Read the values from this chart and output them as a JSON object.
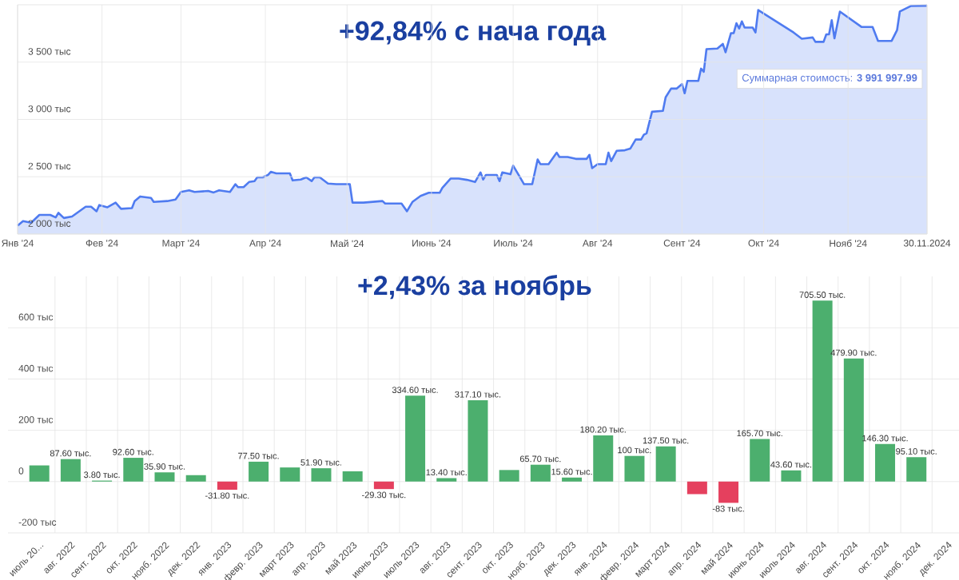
{
  "chart_data": [
    {
      "type": "area",
      "title": "+92,84% с нача года",
      "x": [
        "2024-01-01",
        "2024-01-03",
        "2024-01-06",
        "2024-01-09",
        "2024-01-13",
        "2024-01-15",
        "2024-01-16",
        "2024-01-18",
        "2024-01-21",
        "2024-01-26",
        "2024-01-28",
        "2024-01-30",
        "2024-01-31",
        "2024-02-03",
        "2024-02-06",
        "2024-02-08",
        "2024-02-12",
        "2024-02-13",
        "2024-02-15",
        "2024-02-19",
        "2024-02-20",
        "2024-02-25",
        "2024-02-28",
        "2024-03-01",
        "2024-03-04",
        "2024-03-06",
        "2024-03-11",
        "2024-03-13",
        "2024-03-15",
        "2024-03-19",
        "2024-03-21",
        "2024-03-22",
        "2024-03-24",
        "2024-03-26",
        "2024-03-28",
        "2024-03-29",
        "2024-03-31",
        "2024-04-02",
        "2024-04-03",
        "2024-04-05",
        "2024-04-10",
        "2024-04-11",
        "2024-04-14",
        "2024-04-16",
        "2024-04-18",
        "2024-04-19",
        "2024-04-21",
        "2024-04-24",
        "2024-04-27",
        "2024-05-02",
        "2024-05-03",
        "2024-05-07",
        "2024-05-14",
        "2024-05-15",
        "2024-05-21",
        "2024-05-23",
        "2024-05-25",
        "2024-05-28",
        "2024-05-31",
        "2024-06-04",
        "2024-06-05",
        "2024-06-08",
        "2024-06-11",
        "2024-06-14",
        "2024-06-17",
        "2024-06-19",
        "2024-06-20",
        "2024-06-21",
        "2024-06-25",
        "2024-06-26",
        "2024-06-27",
        "2024-06-30",
        "2024-07-01",
        "2024-07-03",
        "2024-07-05",
        "2024-07-08",
        "2024-07-10",
        "2024-07-11",
        "2024-07-14",
        "2024-07-17",
        "2024-07-18",
        "2024-07-21",
        "2024-07-24",
        "2024-07-28",
        "2024-07-29",
        "2024-07-30",
        "2024-08-01",
        "2024-08-04",
        "2024-08-05",
        "2024-08-06",
        "2024-08-08",
        "2024-08-11",
        "2024-08-13",
        "2024-08-14",
        "2024-08-15",
        "2024-08-17",
        "2024-08-18",
        "2024-08-19",
        "2024-08-21",
        "2024-08-25",
        "2024-08-26",
        "2024-08-28",
        "2024-08-30",
        "2024-09-01",
        "2024-09-02",
        "2024-09-03",
        "2024-09-07",
        "2024-09-08",
        "2024-09-09",
        "2024-09-10",
        "2024-09-14",
        "2024-09-16",
        "2024-09-17",
        "2024-09-19",
        "2024-09-20",
        "2024-09-21",
        "2024-09-22",
        "2024-09-23",
        "2024-09-24",
        "2024-09-27",
        "2024-09-28",
        "2024-09-29",
        "2024-10-12",
        "2024-10-15",
        "2024-10-19",
        "2024-10-20",
        "2024-10-23",
        "2024-10-24",
        "2024-10-25",
        "2024-10-26",
        "2024-10-27",
        "2024-10-29",
        "2024-11-06",
        "2024-11-10",
        "2024-11-12",
        "2024-11-17",
        "2024-11-19",
        "2024-11-20",
        "2024-11-24",
        "2024-11-30"
      ],
      "series": [
        {
          "color": "#4f7bf0",
          "values": [
            2073,
            2113,
            2099,
            2167,
            2167,
            2145,
            2185,
            2140,
            2153,
            2239,
            2239,
            2199,
            2253,
            2234,
            2274,
            2220,
            2226,
            2288,
            2328,
            2315,
            2280,
            2288,
            2301,
            2368,
            2382,
            2368,
            2376,
            2363,
            2382,
            2368,
            2435,
            2409,
            2409,
            2454,
            2462,
            2495,
            2495,
            2516,
            2543,
            2530,
            2530,
            2468,
            2476,
            2495,
            2462,
            2495,
            2495,
            2441,
            2435,
            2435,
            2274,
            2274,
            2288,
            2266,
            2266,
            2199,
            2280,
            2333,
            2360,
            2360,
            2403,
            2484,
            2484,
            2473,
            2454,
            2538,
            2476,
            2516,
            2516,
            2462,
            2538,
            2522,
            2597,
            2516,
            2435,
            2435,
            2651,
            2610,
            2610,
            2710,
            2672,
            2672,
            2656,
            2656,
            2691,
            2575,
            2610,
            2610,
            2710,
            2637,
            2726,
            2731,
            2745,
            2785,
            2825,
            2825,
            2866,
            2879,
            3067,
            3075,
            3193,
            3269,
            3269,
            3309,
            3228,
            3336,
            3336,
            3443,
            3416,
            3613,
            3618,
            3659,
            3586,
            3753,
            3753,
            3839,
            3793,
            3855,
            3801,
            3801,
            3758,
            3954,
            3758,
            3704,
            3715,
            3677,
            3677,
            3742,
            3742,
            3866,
            3707,
            3941,
            3806,
            3806,
            3685,
            3685,
            3780,
            3941,
            3989,
            3992
          ]
        }
      ],
      "xlim": [
        "2024-01-01",
        "2024-11-30"
      ],
      "xticks": [
        {
          "value": "2024-01-01",
          "label": "Янв '24"
        },
        {
          "value": "2024-02-01",
          "label": "Фев '24"
        },
        {
          "value": "2024-03-01",
          "label": "Март '24"
        },
        {
          "value": "2024-04-01",
          "label": "Апр '24"
        },
        {
          "value": "2024-05-01",
          "label": "Май '24"
        },
        {
          "value": "2024-06-01",
          "label": "Июнь '24"
        },
        {
          "value": "2024-07-01",
          "label": "Июль '24"
        },
        {
          "value": "2024-08-01",
          "label": "Авг '24"
        },
        {
          "value": "2024-09-01",
          "label": "Сент '24"
        },
        {
          "value": "2024-10-01",
          "label": "Окт '24"
        },
        {
          "value": "2024-11-01",
          "label": "Нояб '24"
        },
        {
          "value": "2024-11-30",
          "label": "30.11.2024"
        }
      ],
      "ylim": [
        2000,
        4000
      ],
      "yticks": [
        {
          "value": 2000,
          "label": "2 000 тыс"
        },
        {
          "value": 2500,
          "label": "2 500 тыс"
        },
        {
          "value": 3000,
          "label": "3 000 тыс"
        },
        {
          "value": 3500,
          "label": "3 500 тыс"
        }
      ],
      "grid": true,
      "annotations": [
        "Суммарная стоимость: **3 991 997.99**"
      ]
    },
    {
      "type": "bar",
      "title": "+2,43% за ноябрь",
      "categories": [
        "июль 20...",
        "авг. 2022",
        "сент. 2022",
        "окт. 2022",
        "нояб. 2022",
        "дек. 2022",
        "янв. 2023",
        "февр. 2023",
        "март 2023",
        "апр. 2023",
        "май 2023",
        "июнь 2023",
        "июль 2023",
        "авг. 2023",
        "сент. 2023",
        "окт. 2023",
        "нояб. 2023",
        "дек. 2023",
        "янв. 2024",
        "февр. 2024",
        "март 2024",
        "апр. 2024",
        "май 2024",
        "июнь 2024",
        "июль 2024",
        "авг. 2024",
        "сент. 2024",
        "окт. 2024",
        "нояб. 2024",
        "дек. 2024"
      ],
      "values": [
        63,
        87.6,
        3.8,
        92.6,
        35.9,
        25,
        -31.8,
        77.5,
        55,
        51.9,
        40,
        -29.3,
        334.6,
        13.4,
        317.1,
        45,
        65.7,
        15.6,
        180.2,
        100,
        137.5,
        -49,
        -83,
        165.7,
        43.6,
        705.5,
        479.9,
        146.3,
        95.1,
        null
      ],
      "value_labels": [
        null,
        "87.60 тыс.",
        "3.80 тыс.",
        "92.60 тыс.",
        "35.90 тыс.",
        null,
        "-31.80 тыс.",
        "77.50 тыс.",
        null,
        "51.90 тыс.",
        null,
        "-29.30 тыс.",
        "334.60 тыс.",
        "13.40 тыс.",
        "317.10 тыс.",
        null,
        "65.70 тыс.",
        "15.60 тыс.",
        "180.20 тыс.",
        "100 тыс.",
        "137.50 тыс.",
        null,
        "-83 тыс.",
        "165.70 тыс.",
        "43.60 тыс.",
        "705.50 тыс.",
        "479.90 тыс.",
        "146.30 тыс.",
        "95.10 тыс.",
        null
      ],
      "colors": [
        "#4caf6e",
        "#4caf6e",
        "#4caf6e",
        "#4caf6e",
        "#4caf6e",
        "#4caf6e",
        "#e5405e",
        "#4caf6e",
        "#4caf6e",
        "#4caf6e",
        "#4caf6e",
        "#e5405e",
        "#4caf6e",
        "#4caf6e",
        "#4caf6e",
        "#4caf6e",
        "#4caf6e",
        "#4caf6e",
        "#4caf6e",
        "#4caf6e",
        "#4caf6e",
        "#e5405e",
        "#e5405e",
        "#4caf6e",
        "#4caf6e",
        "#4caf6e",
        "#4caf6e",
        "#4caf6e",
        "#4caf6e",
        "#4caf6e"
      ],
      "ylim": [
        -200,
        800
      ],
      "yticks": [
        {
          "value": -200,
          "label": "-200 тыс"
        },
        {
          "value": 0,
          "label": "0"
        },
        {
          "value": 200,
          "label": "200 тыс"
        },
        {
          "value": 400,
          "label": "400 тыс"
        },
        {
          "value": 600,
          "label": "600 тыс"
        }
      ],
      "grid": true
    }
  ]
}
